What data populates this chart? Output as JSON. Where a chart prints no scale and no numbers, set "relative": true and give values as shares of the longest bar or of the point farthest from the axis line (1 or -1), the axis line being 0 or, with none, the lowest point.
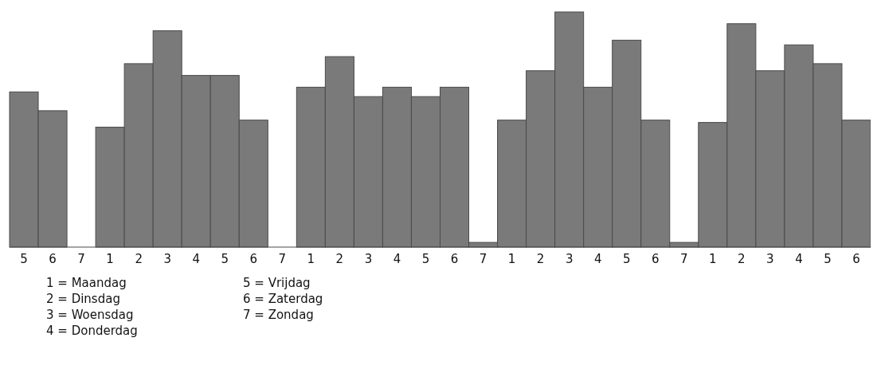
{
  "chart_data": {
    "type": "bar",
    "relative": true,
    "color": "#7a7a7a",
    "categories": [
      "5",
      "6",
      "7",
      "1",
      "2",
      "3",
      "4",
      "5",
      "6",
      "7",
      "1",
      "2",
      "3",
      "4",
      "5",
      "6",
      "7",
      "1",
      "2",
      "3",
      "4",
      "5",
      "6",
      "7",
      "1",
      "2",
      "3",
      "4",
      "5",
      "6"
    ],
    "values": [
      0.66,
      0.58,
      0,
      0.51,
      0.78,
      0.92,
      0.73,
      0.73,
      0.54,
      0,
      0.68,
      0.81,
      0.64,
      0.68,
      0.64,
      0.68,
      0.02,
      0.54,
      0.75,
      1,
      0.68,
      0.88,
      0.54,
      0.02,
      0.53,
      0.95,
      0.75,
      0.86,
      0.78,
      0.54
    ],
    "annotations": [
      "1 = Maandag",
      "2 = Dinsdag",
      "3 = Woensdag",
      "4 = Donderdag",
      "5 = Vrijdag",
      "6 = Zaterdag",
      "7 = Zondag"
    ]
  }
}
